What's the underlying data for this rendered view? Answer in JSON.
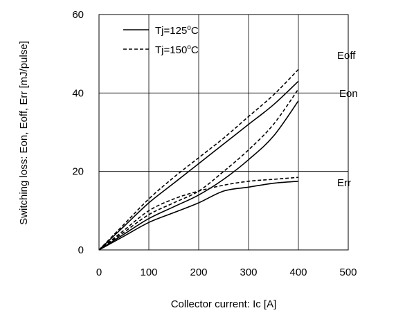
{
  "chart_data": {
    "type": "line",
    "xlabel": "Collector current: Ic [A]",
    "ylabel": "Switching loss: Eon, Eoff, Err [mJ/pulse]",
    "xlim": [
      0,
      500
    ],
    "ylim": [
      0,
      60
    ],
    "xticks": [
      "0",
      "100",
      "200",
      "300",
      "400",
      "500"
    ],
    "yticks": [
      "0",
      "20",
      "40",
      "60"
    ],
    "grid": true,
    "legend_position": "top-left",
    "legend": [
      {
        "label_prefix": "Tj=125",
        "label_sup": "o",
        "label_suffix": "C",
        "style": "solid"
      },
      {
        "label_prefix": "Tj=150",
        "label_sup": "o",
        "label_suffix": "C",
        "style": "dashed"
      }
    ],
    "curve_labels": [
      "Eoff",
      "Eon",
      "Err"
    ],
    "series": [
      {
        "curve": "Eoff",
        "tj": "125",
        "style": "solid",
        "x": [
          0,
          50,
          100,
          150,
          200,
          250,
          300,
          350,
          400
        ],
        "y": [
          0,
          6,
          12,
          17,
          22,
          27,
          32,
          37,
          43
        ]
      },
      {
        "curve": "Eoff",
        "tj": "150",
        "style": "dashed",
        "x": [
          0,
          50,
          100,
          150,
          200,
          250,
          300,
          350,
          400
        ],
        "y": [
          0,
          6.5,
          13,
          18.5,
          23.5,
          28.5,
          34,
          39.5,
          46
        ]
      },
      {
        "curve": "Eon",
        "tj": "125",
        "style": "solid",
        "x": [
          0,
          50,
          100,
          150,
          200,
          250,
          300,
          350,
          400
        ],
        "y": [
          0,
          4,
          8,
          11,
          14,
          18,
          23,
          29,
          38
        ]
      },
      {
        "curve": "Eon",
        "tj": "150",
        "style": "dashed",
        "x": [
          0,
          50,
          100,
          150,
          200,
          250,
          300,
          350,
          400
        ],
        "y": [
          0,
          4.5,
          9,
          12,
          15,
          20,
          25.5,
          32,
          41
        ]
      },
      {
        "curve": "Err",
        "tj": "125",
        "style": "solid",
        "x": [
          0,
          50,
          100,
          150,
          200,
          250,
          300,
          350,
          400
        ],
        "y": [
          0,
          3.5,
          7,
          9.5,
          12,
          15,
          16,
          17,
          17.5
        ]
      },
      {
        "curve": "Err",
        "tj": "150",
        "style": "dashed",
        "x": [
          0,
          50,
          100,
          150,
          200,
          250,
          300,
          350,
          400
        ],
        "y": [
          0,
          5,
          10,
          13,
          15,
          16.5,
          17.5,
          18,
          18.5
        ]
      }
    ]
  }
}
